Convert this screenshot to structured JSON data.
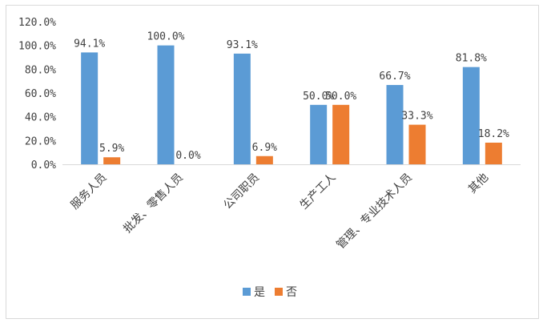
{
  "chart_data": {
    "type": "bar",
    "categories": [
      "服务人员",
      "批发、零售人员",
      "公司职员",
      "生产工人",
      "管理、专业技术人员",
      "其他"
    ],
    "series": [
      {
        "name": "是",
        "color": "#5b9bd5",
        "values": [
          94.1,
          100.0,
          93.1,
          50.0,
          66.7,
          81.8
        ],
        "labels": [
          "94.1%",
          "100.0%",
          "93.1%",
          "50.0%",
          "66.7%",
          "81.8%"
        ]
      },
      {
        "name": "否",
        "color": "#ed7d31",
        "values": [
          5.9,
          0.0,
          6.9,
          50.0,
          33.3,
          18.2
        ],
        "labels": [
          "5.9%",
          "0.0%",
          "6.9%",
          "50.0%",
          "33.3%",
          "18.2%"
        ]
      }
    ],
    "yticks": [
      "0.0%",
      "20.0%",
      "40.0%",
      "60.0%",
      "80.0%",
      "100.0%",
      "120.0%"
    ],
    "ylim": [
      0,
      120
    ],
    "grid": false,
    "legend_position": "bottom",
    "title": "",
    "xlabel": "",
    "ylabel": ""
  }
}
